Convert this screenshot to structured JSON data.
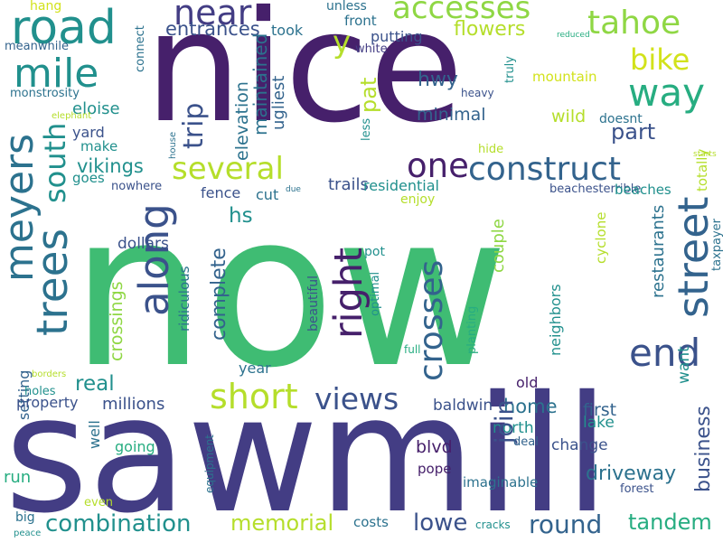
{
  "palette": {
    "dark_purple": "#46206b",
    "indigo": "#433d84",
    "slate_blue": "#3b528b",
    "steel_blue": "#33638d",
    "teal_blue": "#2c728e",
    "teal": "#21908d",
    "sea_green": "#27ad81",
    "green": "#3fbc73",
    "lime": "#8fd744",
    "yellow_green": "#b5de2b",
    "yellow": "#d2e21b",
    "background": "#ffffff"
  },
  "words": [
    {
      "text": "now",
      "color": "green"
    },
    {
      "text": "sawmill",
      "color": "indigo"
    },
    {
      "text": "nice",
      "color": "dark_purple"
    },
    {
      "text": "road",
      "color": "teal"
    },
    {
      "text": "mile",
      "color": "teal"
    },
    {
      "text": "near",
      "color": "indigo"
    },
    {
      "text": "y",
      "color": "yellow_green"
    },
    {
      "text": "accesses",
      "color": "lime"
    },
    {
      "text": "tahoe",
      "color": "lime"
    },
    {
      "text": "bike",
      "color": "yellow"
    },
    {
      "text": "way",
      "color": "sea_green"
    },
    {
      "text": "meyers",
      "color": "teal_blue"
    },
    {
      "text": "trees",
      "color": "teal_blue"
    },
    {
      "text": "south",
      "color": "teal"
    },
    {
      "text": "along",
      "color": "slate_blue"
    },
    {
      "text": "several",
      "color": "yellow_green"
    },
    {
      "text": "one",
      "color": "dark_purple"
    },
    {
      "text": "construct",
      "color": "steel_blue"
    },
    {
      "text": "street",
      "color": "steel_blue"
    },
    {
      "text": "end",
      "color": "slate_blue"
    },
    {
      "text": "right",
      "color": "dark_purple"
    },
    {
      "text": "short",
      "color": "yellow_green"
    },
    {
      "text": "views",
      "color": "slate_blue"
    },
    {
      "text": "crosses",
      "color": "steel_blue"
    },
    {
      "text": "combination",
      "color": "teal"
    },
    {
      "text": "memorial",
      "color": "yellow_green"
    },
    {
      "text": "round",
      "color": "steel_blue"
    },
    {
      "text": "tandem",
      "color": "sea_green"
    },
    {
      "text": "lowe",
      "color": "slate_blue"
    },
    {
      "text": "entrances",
      "color": "slate_blue"
    },
    {
      "text": "hwy",
      "color": "steel_blue"
    },
    {
      "text": "flowers",
      "color": "yellow_green"
    },
    {
      "text": "part",
      "color": "slate_blue"
    },
    {
      "text": "minimal",
      "color": "steel_blue"
    },
    {
      "text": "wild",
      "color": "yellow_green"
    },
    {
      "text": "trip",
      "color": "slate_blue"
    },
    {
      "text": "pat",
      "color": "yellow_green"
    },
    {
      "text": "elevation",
      "color": "teal_blue"
    },
    {
      "text": "maintained",
      "color": "teal_blue"
    },
    {
      "text": "ugliest",
      "color": "steel_blue"
    },
    {
      "text": "took",
      "color": "teal_blue"
    },
    {
      "text": "putting",
      "color": "slate_blue"
    },
    {
      "text": "front",
      "color": "teal_blue"
    },
    {
      "text": "unless",
      "color": "teal_blue"
    },
    {
      "text": "white",
      "color": "indigo"
    },
    {
      "text": "eloise",
      "color": "teal"
    },
    {
      "text": "yard",
      "color": "slate_blue"
    },
    {
      "text": "make",
      "color": "teal"
    },
    {
      "text": "vikings",
      "color": "teal"
    },
    {
      "text": "goes",
      "color": "teal"
    },
    {
      "text": "nowhere",
      "color": "slate_blue"
    },
    {
      "text": "fence",
      "color": "slate_blue"
    },
    {
      "text": "cut",
      "color": "teal_blue"
    },
    {
      "text": "trails",
      "color": "slate_blue"
    },
    {
      "text": "hs",
      "color": "teal"
    },
    {
      "text": "less",
      "color": "teal"
    },
    {
      "text": "complete",
      "color": "steel_blue"
    },
    {
      "text": "residential",
      "color": "teal"
    },
    {
      "text": "enjoy",
      "color": "yellow_green"
    },
    {
      "text": "dollars",
      "color": "slate_blue"
    },
    {
      "text": "couple",
      "color": "lime"
    },
    {
      "text": "beautiful",
      "color": "slate_blue"
    },
    {
      "text": "pot",
      "color": "teal"
    },
    {
      "text": "optimal",
      "color": "teal"
    },
    {
      "text": "ridiculous",
      "color": "teal_blue"
    },
    {
      "text": "crossings",
      "color": "lime"
    },
    {
      "text": "setting",
      "color": "steel_blue"
    },
    {
      "text": "real",
      "color": "teal"
    },
    {
      "text": "holes",
      "color": "teal"
    },
    {
      "text": "property",
      "color": "slate_blue"
    },
    {
      "text": "millions",
      "color": "slate_blue"
    },
    {
      "text": "year",
      "color": "teal_blue"
    },
    {
      "text": "well",
      "color": "teal_blue"
    },
    {
      "text": "going",
      "color": "sea_green"
    },
    {
      "text": "run",
      "color": "sea_green"
    },
    {
      "text": "equipment",
      "color": "teal_blue"
    },
    {
      "text": "even",
      "color": "yellow_green"
    },
    {
      "text": "big",
      "color": "teal_blue"
    },
    {
      "text": "peace",
      "color": "teal"
    },
    {
      "text": "full",
      "color": "sea_green"
    },
    {
      "text": "planting",
      "color": "sea_green"
    },
    {
      "text": "old",
      "color": "dark_purple"
    },
    {
      "text": "neighbors",
      "color": "teal"
    },
    {
      "text": "home",
      "color": "teal_blue"
    },
    {
      "text": "north",
      "color": "teal"
    },
    {
      "text": "baldwin",
      "color": "slate_blue"
    },
    {
      "text": "blvd",
      "color": "dark_purple"
    },
    {
      "text": "join",
      "color": "slate_blue"
    },
    {
      "text": "change",
      "color": "slate_blue"
    },
    {
      "text": "pope",
      "color": "dark_purple"
    },
    {
      "text": "deal",
      "color": "steel_blue"
    },
    {
      "text": "imaginable",
      "color": "teal_blue"
    },
    {
      "text": "cracks",
      "color": "teal"
    },
    {
      "text": "costs",
      "color": "teal_blue"
    },
    {
      "text": "restaurants",
      "color": "teal_blue"
    },
    {
      "text": "business",
      "color": "slate_blue"
    },
    {
      "text": "first",
      "color": "steel_blue"
    },
    {
      "text": "lake",
      "color": "teal"
    },
    {
      "text": "driveway",
      "color": "teal_blue"
    },
    {
      "text": "forest",
      "color": "slate_blue"
    },
    {
      "text": "want",
      "color": "teal"
    },
    {
      "text": "cyclone",
      "color": "yellow_green"
    },
    {
      "text": "taxpayer",
      "color": "teal_blue"
    },
    {
      "text": "beachesterrible",
      "color": "slate_blue"
    },
    {
      "text": "beaches",
      "color": "teal"
    },
    {
      "text": "doesnt",
      "color": "teal_blue"
    },
    {
      "text": "starts",
      "color": "yellow_green"
    },
    {
      "text": "totally",
      "color": "yellow_green"
    },
    {
      "text": "mountain",
      "color": "yellow"
    },
    {
      "text": "truly",
      "color": "teal"
    },
    {
      "text": "heavy",
      "color": "slate_blue"
    },
    {
      "text": "hide",
      "color": "yellow_green"
    },
    {
      "text": "due",
      "color": "teal_blue"
    },
    {
      "text": "reduced",
      "color": "sea_green"
    },
    {
      "text": "house",
      "color": "teal_blue"
    },
    {
      "text": "elephant",
      "color": "yellow_green"
    },
    {
      "text": "monstrosity",
      "color": "teal_blue"
    },
    {
      "text": "meanwhile",
      "color": "steel_blue"
    },
    {
      "text": "hang",
      "color": "yellow"
    },
    {
      "text": "connect",
      "color": "teal_blue"
    },
    {
      "text": "borders",
      "color": "yellow_green"
    },
    {
      "text": "privacy",
      "color": "teal_blue"
    }
  ]
}
